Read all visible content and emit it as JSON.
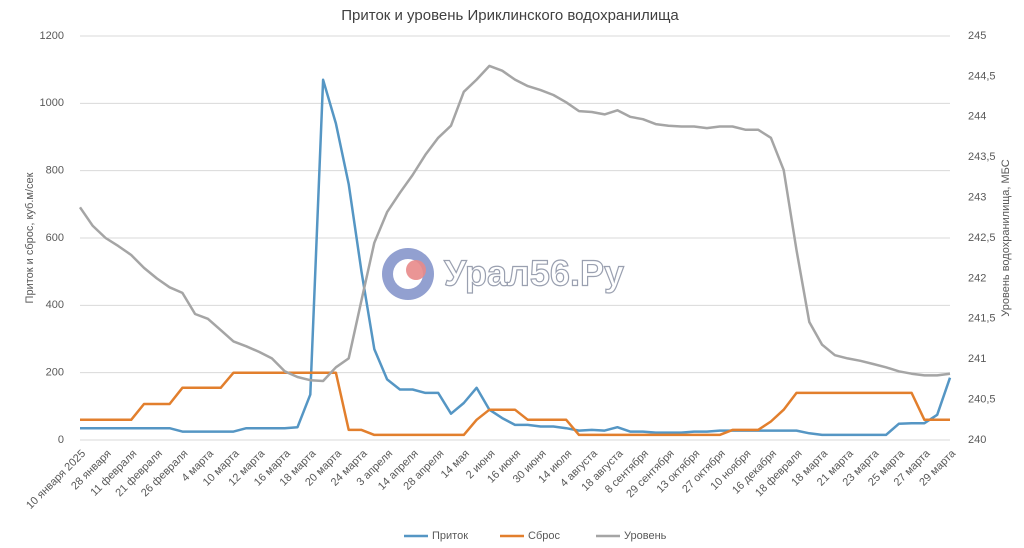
{
  "chart_data": {
    "type": "line",
    "title": "Приток и уровень Ириклинского водохранилища",
    "watermark": "Урал56.Ру",
    "y_label": "Приток и сброс, куб.м/сек",
    "y2_label": "Уровень водохранилища, МБС",
    "categories": [
      "10 января 2025",
      null,
      "28 января",
      null,
      "11 февраля",
      null,
      "21 февраля",
      null,
      "26 февраля",
      null,
      "4 марта",
      null,
      "10 марта",
      null,
      "12 марта",
      null,
      "16 марта",
      null,
      "18 марта",
      null,
      "20 марта",
      null,
      "24 марта",
      null,
      "3 апреля",
      null,
      "14 апреля",
      null,
      "28 апреля",
      null,
      "14 мая",
      null,
      "2 июня",
      null,
      "16 июня",
      null,
      "30 июня",
      null,
      "14 июля",
      null,
      "4 августа",
      null,
      "18 августа",
      null,
      "8 сентября",
      null,
      "29 сентября",
      null,
      "13 октября",
      null,
      "27 октября",
      null,
      "10 ноября",
      null,
      "16 декабря",
      null,
      "18 февраля",
      null,
      "18 марта",
      null,
      "21 марта",
      null,
      "23 марта",
      null,
      "25 марта",
      null,
      "27 марта",
      null,
      "29 марта"
    ],
    "series": [
      {
        "name": "Приток",
        "color": "#5596c4",
        "values": [
          35,
          35,
          35,
          35,
          35,
          35,
          35,
          35,
          25,
          25,
          25,
          25,
          25,
          35,
          35,
          35,
          35,
          38,
          135,
          1070,
          940,
          760,
          500,
          270,
          180,
          150,
          150,
          140,
          140,
          78,
          110,
          155,
          90,
          65,
          45,
          45,
          40,
          40,
          35,
          28,
          30,
          28,
          38,
          25,
          25,
          22,
          22,
          22,
          25,
          25,
          28,
          28,
          28,
          28,
          28,
          28,
          28,
          20,
          15,
          15,
          15,
          15,
          15,
          15,
          48,
          50,
          50,
          75,
          185
        ]
      },
      {
        "name": "Сброс",
        "color": "#e27f2d",
        "values": [
          60,
          60,
          60,
          60,
          60,
          107,
          107,
          107,
          155,
          155,
          155,
          155,
          200,
          200,
          200,
          200,
          200,
          200,
          200,
          200,
          200,
          30,
          30,
          15,
          15,
          15,
          15,
          15,
          15,
          15,
          15,
          60,
          90,
          90,
          90,
          60,
          60,
          60,
          60,
          15,
          15,
          15,
          15,
          15,
          15,
          15,
          15,
          15,
          15,
          15,
          15,
          30,
          30,
          30,
          55,
          90,
          140,
          140,
          140,
          140,
          140,
          140,
          140,
          140,
          140,
          140,
          60,
          60,
          60
        ]
      },
      {
        "name": "Уровень",
        "color": "#a5a5a5",
        "axis": "y2",
        "values": [
          242.88,
          242.65,
          242.5,
          242.4,
          242.29,
          242.13,
          242.0,
          241.89,
          241.82,
          241.56,
          241.5,
          241.36,
          241.22,
          241.16,
          241.09,
          241.01,
          240.85,
          240.78,
          240.74,
          240.73,
          240.9,
          241.01,
          241.73,
          242.44,
          242.82,
          243.06,
          243.28,
          243.53,
          243.74,
          243.89,
          244.31,
          244.46,
          244.63,
          244.57,
          244.46,
          244.38,
          244.33,
          244.27,
          244.18,
          244.07,
          244.06,
          244.03,
          244.08,
          244.0,
          243.97,
          243.91,
          243.89,
          243.88,
          243.88,
          243.86,
          243.88,
          243.88,
          243.84,
          243.84,
          243.74,
          243.34,
          242.35,
          241.46,
          241.18,
          241.05,
          241.01,
          240.98,
          240.94,
          240.9,
          240.85,
          240.82,
          240.8,
          240.8,
          240.82
        ]
      }
    ],
    "ylim": [
      0,
      1200
    ],
    "yticks": [
      0,
      200,
      400,
      600,
      800,
      1000,
      1200
    ],
    "y2lim": [
      240,
      245
    ],
    "y2ticks": [
      240,
      {
        "value": 240.5,
        "label": "240,5"
      },
      241,
      {
        "value": 241.5,
        "label": "241,5"
      },
      242,
      {
        "value": 242.5,
        "label": "242,5"
      },
      243,
      {
        "value": 243.5,
        "label": "243,5"
      },
      244,
      {
        "value": 244.5,
        "label": "244,5"
      },
      245
    ],
    "grid": true,
    "legend": "bottom"
  }
}
